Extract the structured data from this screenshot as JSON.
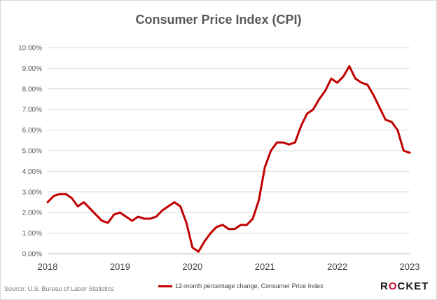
{
  "chart_data": {
    "type": "line",
    "title": "Consumer Price Index (CPI)",
    "xlabel": "",
    "ylabel": "",
    "xlim": [
      2018,
      2023
    ],
    "ylim": [
      0,
      10
    ],
    "x_ticks": [
      2018,
      2019,
      2020,
      2021,
      2022,
      2023
    ],
    "x_tick_labels": [
      "2018",
      "2019",
      "2020",
      "2021",
      "2022",
      "2023"
    ],
    "y_ticks": [
      0,
      1,
      2,
      3,
      4,
      5,
      6,
      7,
      8,
      9,
      10
    ],
    "y_tick_labels": [
      "0.00%",
      "1.00%",
      "2.00%",
      "3.00%",
      "4.00%",
      "5.00%",
      "6.00%",
      "7.00%",
      "8.00%",
      "9.00%",
      "10.00%"
    ],
    "grid": "horizontal",
    "legend_position": "bottom",
    "series": [
      {
        "name": "12-month percentage change, Consumer Price Index",
        "color": "#c00000",
        "start_year": 2018,
        "points_per_year": 12,
        "values": [
          2.5,
          2.8,
          2.9,
          2.9,
          2.7,
          2.3,
          2.5,
          2.2,
          1.9,
          1.6,
          1.5,
          1.9,
          2.0,
          1.8,
          1.6,
          1.8,
          1.7,
          1.7,
          1.8,
          2.1,
          2.3,
          2.5,
          2.3,
          1.5,
          0.3,
          0.1,
          0.6,
          1.0,
          1.3,
          1.4,
          1.2,
          1.2,
          1.4,
          1.4,
          1.7,
          2.6,
          4.2,
          5.0,
          5.4,
          5.4,
          5.3,
          5.4,
          6.2,
          6.8,
          7.0,
          7.5,
          7.9,
          8.5,
          8.3,
          8.6,
          9.1,
          8.5,
          8.3,
          8.2,
          7.7,
          7.1,
          6.5,
          6.4,
          6.0,
          5.0,
          4.9
        ]
      }
    ]
  },
  "footer": {
    "source": "Source: U.S. Bureau of Labor Statistics",
    "brand_prefix": "R",
    "brand_o": "O",
    "brand_suffix": "CKET"
  }
}
